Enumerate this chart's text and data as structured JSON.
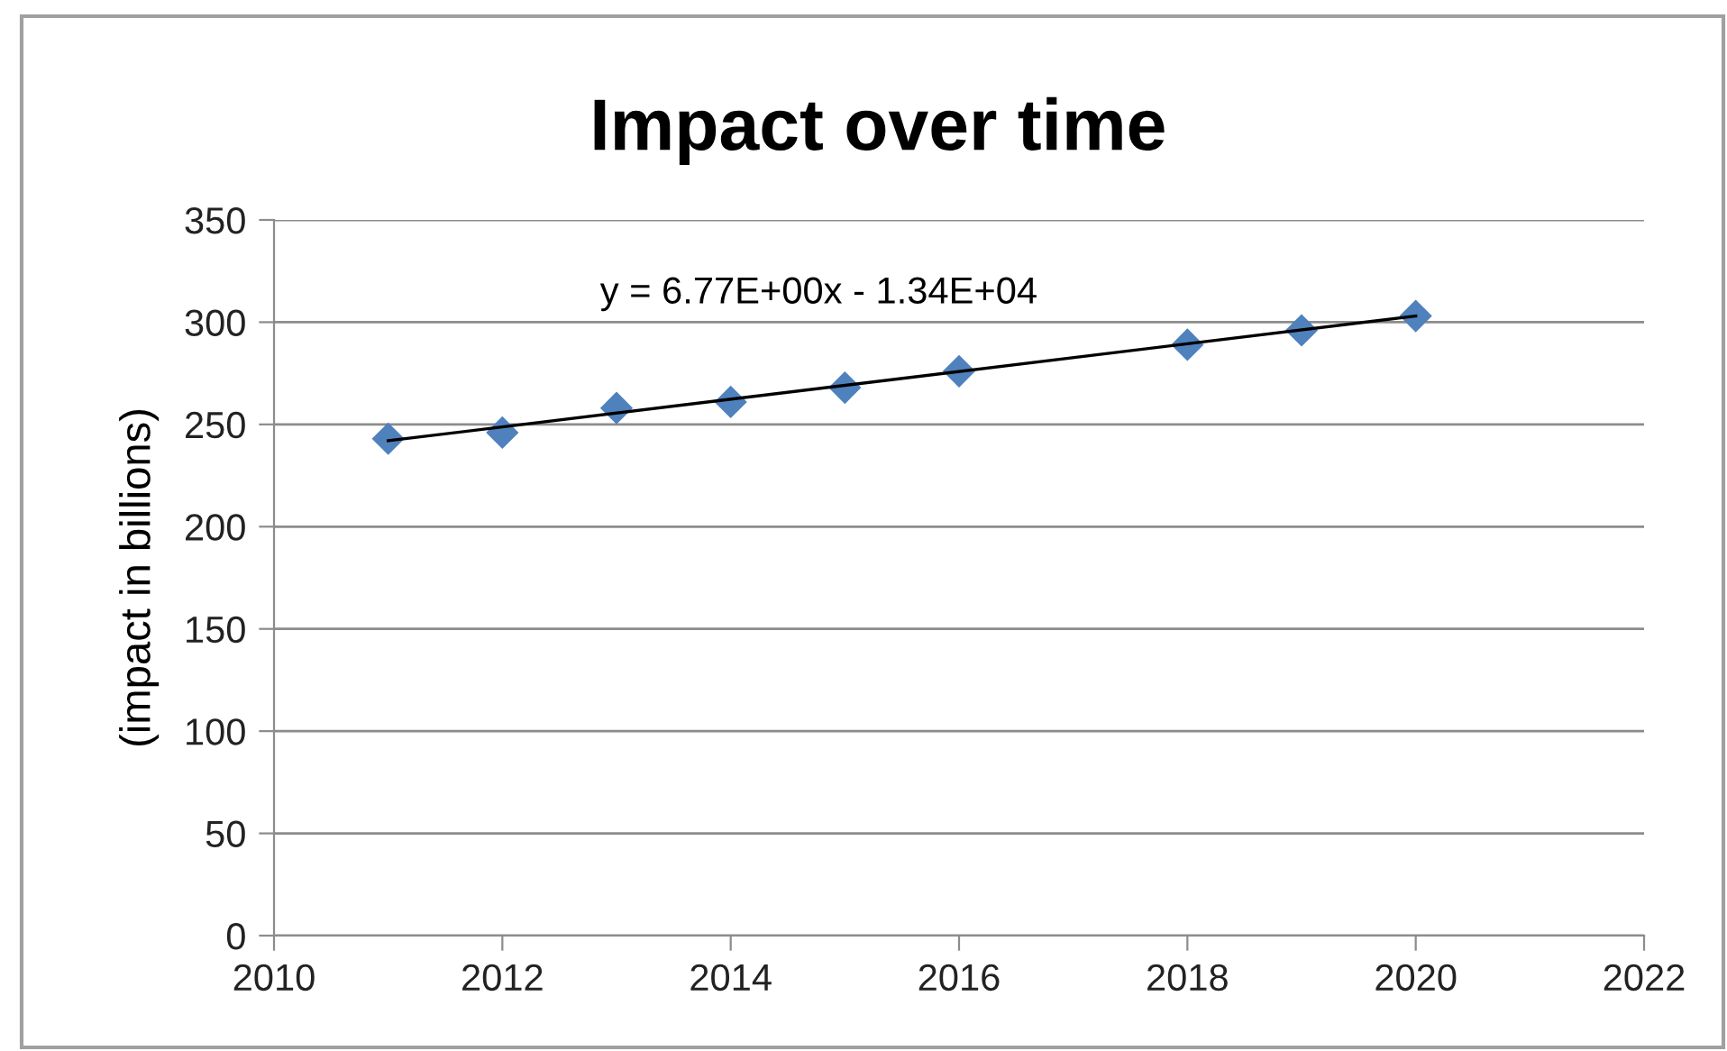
{
  "chart_data": {
    "type": "scatter",
    "title": "Impact over time",
    "ylabel": "(impact in billions)",
    "annotations": [
      "y = 6.77E+00x - 1.34E+04"
    ],
    "marker": "diamond",
    "series": [
      {
        "color": "#4f81bd",
        "x": [
          2011,
          2012,
          2013,
          2014,
          2015,
          2016,
          2018,
          2019,
          2020
        ],
        "values": [
          243,
          246,
          258,
          261,
          268,
          276,
          289,
          296,
          303
        ]
      },
      {
        "type": "line",
        "color": "#000000",
        "marker": "none",
        "line_style": "solid",
        "x": [
          2011,
          2020
        ],
        "values": [
          242,
          303
        ]
      }
    ],
    "xlim": [
      2010,
      2022
    ],
    "xticks": [
      2010,
      2012,
      2014,
      2016,
      2018,
      2020,
      2022
    ],
    "ylim": [
      0,
      350
    ],
    "yticks": [
      0,
      50,
      100,
      150,
      200,
      250,
      300,
      350
    ],
    "grid": "y",
    "legend": false
  }
}
